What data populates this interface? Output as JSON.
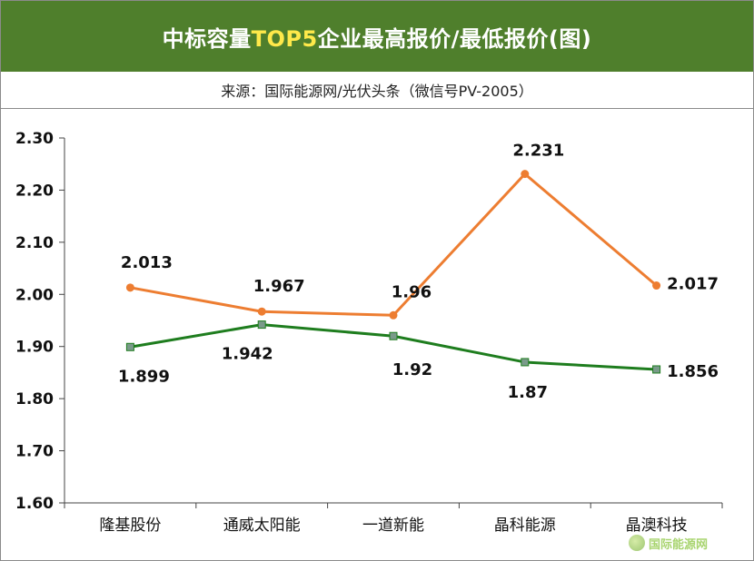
{
  "header": {
    "title_part1": "中标容量",
    "title_highlight": "TOP5",
    "title_part2": "企业最高报价/最低报价(图)",
    "subtitle": "来源：国际能源网/光伏头条（微信号PV-2005）"
  },
  "watermark": {
    "text": "国际能源网",
    "icon": "leaf-logo-icon"
  },
  "colors": {
    "header_bg": "#4f7f2c",
    "highlight": "#ffe94a",
    "max_series": "#ed7d31",
    "min_series": "#1e7d1e",
    "min_marker": "#7a9a8a"
  },
  "chart_data": {
    "type": "line",
    "categories": [
      "隆基股份",
      "通威太阳能",
      "一道新能",
      "晶科能源",
      "晶澳科技"
    ],
    "series": [
      {
        "key": "max",
        "values": [
          2.013,
          1.967,
          1.96,
          2.231,
          2.017
        ],
        "labels": [
          "2.013",
          "1.967",
          "1.96",
          "2.231",
          "2.017"
        ]
      },
      {
        "key": "min",
        "values": [
          1.899,
          1.942,
          1.92,
          1.87,
          1.856
        ],
        "labels": [
          "1.899",
          "1.942",
          "1.92",
          "1.87",
          "1.856"
        ]
      }
    ],
    "ylim": [
      1.6,
      2.3
    ],
    "yticks": [
      "2.30",
      "2.20",
      "2.10",
      "2.00",
      "1.90",
      "1.80",
      "1.70",
      "1.60"
    ],
    "grid": false,
    "legend": "none"
  }
}
